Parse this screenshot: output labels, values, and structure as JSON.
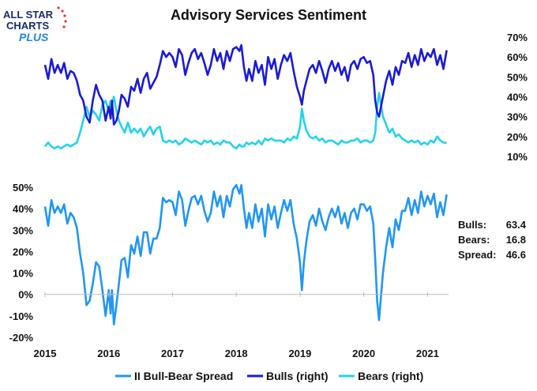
{
  "logo": {
    "line1": "ALL STAR",
    "line2": "CHARTS",
    "line3": "PLUS"
  },
  "colors": {
    "spread": "#2196f3",
    "bulls": "#1a1ad6",
    "bears": "#22d3ee",
    "logo_dark": "#1b2a6b",
    "logo_accent": "#e53935"
  },
  "stats": {
    "bulls_label": "Bulls:",
    "bulls_value": "63.4",
    "bears_label": "Bears:",
    "bears_value": "16.8",
    "spread_label": "Spread:",
    "spread_value": "46.6"
  },
  "chart_data": {
    "type": "line",
    "title": "Advisory Services Sentiment",
    "x_labels": [
      "2015",
      "2016",
      "2017",
      "2018",
      "2019",
      "2020",
      "2021"
    ],
    "xlim": [
      2015.0,
      2021.33
    ],
    "legend": [
      "II Bull-Bear Spread",
      "Bulls (right)",
      "Bears (right)"
    ],
    "legend_position": "bottom",
    "top_panel": {
      "ylim": [
        10,
        70
      ],
      "yticks": [
        "70%",
        "60%",
        "50%",
        "40%",
        "30%",
        "20%",
        "10%"
      ],
      "series": [
        {
          "name": "Bulls (right)",
          "x": [
            2015.0,
            2015.05,
            2015.1,
            2015.15,
            2015.2,
            2015.25,
            2015.3,
            2015.35,
            2015.4,
            2015.45,
            2015.5,
            2015.55,
            2015.6,
            2015.65,
            2015.7,
            2015.75,
            2015.8,
            2015.85,
            2015.9,
            2015.95,
            2016.0,
            2016.03,
            2016.05,
            2016.08,
            2016.12,
            2016.16,
            2016.2,
            2016.25,
            2016.3,
            2016.35,
            2016.4,
            2016.45,
            2016.5,
            2016.55,
            2016.6,
            2016.65,
            2016.7,
            2016.75,
            2016.8,
            2016.85,
            2016.9,
            2016.95,
            2017.0,
            2017.05,
            2017.1,
            2017.15,
            2017.2,
            2017.25,
            2017.3,
            2017.35,
            2017.4,
            2017.45,
            2017.5,
            2017.55,
            2017.6,
            2017.65,
            2017.7,
            2017.75,
            2017.8,
            2017.85,
            2017.9,
            2017.95,
            2018.0,
            2018.05,
            2018.08,
            2018.12,
            2018.16,
            2018.2,
            2018.25,
            2018.3,
            2018.35,
            2018.4,
            2018.45,
            2018.5,
            2018.55,
            2018.6,
            2018.65,
            2018.7,
            2018.75,
            2018.8,
            2018.85,
            2018.9,
            2018.95,
            2019.0,
            2019.03,
            2019.06,
            2019.1,
            2019.15,
            2019.2,
            2019.25,
            2019.3,
            2019.35,
            2019.4,
            2019.45,
            2019.5,
            2019.55,
            2019.6,
            2019.65,
            2019.7,
            2019.75,
            2019.8,
            2019.85,
            2019.9,
            2019.95,
            2020.0,
            2020.05,
            2020.1,
            2020.15,
            2020.18,
            2020.21,
            2020.24,
            2020.27,
            2020.3,
            2020.35,
            2020.4,
            2020.45,
            2020.5,
            2020.55,
            2020.6,
            2020.65,
            2020.7,
            2020.75,
            2020.8,
            2020.85,
            2020.9,
            2020.95,
            2021.0,
            2021.05,
            2021.1,
            2021.15,
            2021.2,
            2021.25,
            2021.3
          ],
          "values": [
            56,
            49,
            59,
            52,
            56,
            52,
            57,
            49,
            53,
            52,
            48,
            41,
            38,
            30,
            27,
            38,
            46,
            41,
            38,
            28,
            35,
            29,
            38,
            26,
            28,
            33,
            41,
            39,
            35,
            45,
            43,
            49,
            42,
            49,
            52,
            44,
            47,
            50,
            56,
            63,
            60,
            62,
            60,
            55,
            64,
            61,
            51,
            57,
            62,
            64,
            59,
            62,
            57,
            51,
            56,
            64,
            58,
            62,
            54,
            63,
            58,
            64,
            65,
            63,
            66,
            55,
            48,
            54,
            48,
            58,
            52,
            56,
            46,
            60,
            54,
            59,
            49,
            56,
            61,
            58,
            62,
            53,
            45,
            40,
            36,
            43,
            48,
            54,
            56,
            52,
            58,
            53,
            47,
            54,
            58,
            53,
            57,
            51,
            55,
            48,
            56,
            58,
            54,
            59,
            60,
            57,
            58,
            51,
            38,
            32,
            30,
            35,
            40,
            48,
            53,
            46,
            55,
            51,
            58,
            57,
            62,
            55,
            61,
            56,
            64,
            58,
            62,
            60,
            64,
            56,
            61,
            54,
            63.4
          ]
        },
        {
          "name": "Bears (right)",
          "x": [
            2015.0,
            2015.05,
            2015.1,
            2015.15,
            2015.2,
            2015.25,
            2015.3,
            2015.35,
            2015.4,
            2015.45,
            2015.5,
            2015.55,
            2015.6,
            2015.65,
            2015.7,
            2015.75,
            2015.8,
            2015.85,
            2015.9,
            2015.95,
            2016.0,
            2016.03,
            2016.05,
            2016.08,
            2016.12,
            2016.16,
            2016.2,
            2016.25,
            2016.3,
            2016.35,
            2016.4,
            2016.45,
            2016.5,
            2016.55,
            2016.6,
            2016.65,
            2016.7,
            2016.75,
            2016.8,
            2016.85,
            2016.9,
            2016.95,
            2017.0,
            2017.05,
            2017.1,
            2017.15,
            2017.2,
            2017.25,
            2017.3,
            2017.35,
            2017.4,
            2017.45,
            2017.5,
            2017.55,
            2017.6,
            2017.65,
            2017.7,
            2017.75,
            2017.8,
            2017.85,
            2017.9,
            2017.95,
            2018.0,
            2018.05,
            2018.08,
            2018.12,
            2018.16,
            2018.2,
            2018.25,
            2018.3,
            2018.35,
            2018.4,
            2018.45,
            2018.5,
            2018.55,
            2018.6,
            2018.65,
            2018.7,
            2018.75,
            2018.8,
            2018.85,
            2018.9,
            2018.95,
            2019.0,
            2019.03,
            2019.06,
            2019.1,
            2019.15,
            2019.2,
            2019.25,
            2019.3,
            2019.35,
            2019.4,
            2019.45,
            2019.5,
            2019.55,
            2019.6,
            2019.65,
            2019.7,
            2019.75,
            2019.8,
            2019.85,
            2019.9,
            2019.95,
            2020.0,
            2020.05,
            2020.1,
            2020.15,
            2020.18,
            2020.21,
            2020.24,
            2020.27,
            2020.3,
            2020.35,
            2020.4,
            2020.45,
            2020.5,
            2020.55,
            2020.6,
            2020.65,
            2020.7,
            2020.75,
            2020.8,
            2020.85,
            2020.9,
            2020.95,
            2021.0,
            2021.05,
            2021.1,
            2021.15,
            2021.2,
            2021.25,
            2021.3
          ],
          "values": [
            15,
            17,
            15,
            14,
            15,
            14,
            15,
            16,
            15,
            16,
            17,
            22,
            28,
            35,
            30,
            33,
            31,
            28,
            36,
            38,
            33,
            38,
            36,
            40,
            33,
            28,
            25,
            22,
            27,
            22,
            24,
            22,
            24,
            20,
            23,
            25,
            21,
            24,
            25,
            18,
            17,
            18,
            17,
            18,
            16,
            17,
            19,
            18,
            17,
            18,
            17,
            16,
            18,
            17,
            18,
            16,
            17,
            16,
            18,
            17,
            17,
            15,
            14,
            16,
            15,
            15,
            17,
            16,
            17,
            16,
            18,
            16,
            19,
            18,
            19,
            18,
            18,
            18,
            17,
            19,
            18,
            20,
            19,
            25,
            34,
            28,
            23,
            20,
            19,
            20,
            18,
            19,
            17,
            18,
            18,
            17,
            16,
            18,
            17,
            17,
            18,
            18,
            19,
            17,
            18,
            18,
            17,
            18,
            22,
            35,
            42,
            36,
            30,
            26,
            22,
            24,
            20,
            21,
            19,
            18,
            17,
            18,
            17,
            18,
            16,
            17,
            16,
            18,
            17,
            20,
            18,
            17,
            16.8
          ]
        }
      ]
    },
    "bottom_panel": {
      "ylim": [
        -20,
        50
      ],
      "yticks": [
        "50%",
        "40%",
        "30%",
        "20%",
        "10%",
        "0%",
        "-10%",
        "-20%"
      ],
      "series": [
        {
          "name": "II Bull-Bear Spread",
          "x": [
            2015.0,
            2015.05,
            2015.1,
            2015.15,
            2015.2,
            2015.25,
            2015.3,
            2015.35,
            2015.4,
            2015.45,
            2015.5,
            2015.55,
            2015.6,
            2015.65,
            2015.7,
            2015.75,
            2015.8,
            2015.85,
            2015.9,
            2015.95,
            2016.0,
            2016.03,
            2016.05,
            2016.08,
            2016.12,
            2016.16,
            2016.2,
            2016.25,
            2016.3,
            2016.35,
            2016.4,
            2016.45,
            2016.5,
            2016.55,
            2016.6,
            2016.65,
            2016.7,
            2016.75,
            2016.8,
            2016.85,
            2016.9,
            2016.95,
            2017.0,
            2017.05,
            2017.1,
            2017.15,
            2017.2,
            2017.25,
            2017.3,
            2017.35,
            2017.4,
            2017.45,
            2017.5,
            2017.55,
            2017.6,
            2017.65,
            2017.7,
            2017.75,
            2017.8,
            2017.85,
            2017.9,
            2017.95,
            2018.0,
            2018.05,
            2018.08,
            2018.12,
            2018.16,
            2018.2,
            2018.25,
            2018.3,
            2018.35,
            2018.4,
            2018.45,
            2018.5,
            2018.55,
            2018.6,
            2018.65,
            2018.7,
            2018.75,
            2018.8,
            2018.85,
            2018.9,
            2018.95,
            2019.0,
            2019.03,
            2019.06,
            2019.1,
            2019.15,
            2019.2,
            2019.25,
            2019.3,
            2019.35,
            2019.4,
            2019.45,
            2019.5,
            2019.55,
            2019.6,
            2019.65,
            2019.7,
            2019.75,
            2019.8,
            2019.85,
            2019.9,
            2019.95,
            2020.0,
            2020.05,
            2020.1,
            2020.15,
            2020.18,
            2020.21,
            2020.24,
            2020.27,
            2020.3,
            2020.35,
            2020.4,
            2020.45,
            2020.5,
            2020.55,
            2020.6,
            2020.65,
            2020.7,
            2020.75,
            2020.8,
            2020.85,
            2020.9,
            2020.95,
            2021.0,
            2021.05,
            2021.1,
            2021.15,
            2021.2,
            2021.25,
            2021.3
          ],
          "values": [
            41,
            32,
            44,
            38,
            41,
            38,
            42,
            33,
            38,
            36,
            31,
            19,
            10,
            -5,
            -3,
            5,
            15,
            13,
            2,
            -10,
            2,
            -9,
            2,
            -14,
            -5,
            5,
            16,
            17,
            8,
            23,
            19,
            27,
            18,
            29,
            29,
            19,
            26,
            26,
            31,
            45,
            43,
            44,
            43,
            37,
            48,
            44,
            32,
            39,
            45,
            46,
            42,
            46,
            39,
            34,
            38,
            48,
            41,
            46,
            36,
            46,
            41,
            49,
            51,
            47,
            51,
            40,
            31,
            38,
            31,
            42,
            34,
            40,
            27,
            42,
            35,
            41,
            31,
            38,
            44,
            39,
            44,
            33,
            26,
            15,
            2,
            15,
            25,
            34,
            37,
            32,
            40,
            34,
            30,
            36,
            40,
            36,
            41,
            33,
            38,
            31,
            38,
            40,
            35,
            42,
            42,
            39,
            41,
            33,
            16,
            -3,
            -12,
            -1,
            10,
            22,
            31,
            22,
            35,
            30,
            39,
            39,
            45,
            37,
            44,
            38,
            48,
            41,
            46,
            42,
            47,
            36,
            43,
            37,
            46.6
          ]
        }
      ]
    }
  }
}
